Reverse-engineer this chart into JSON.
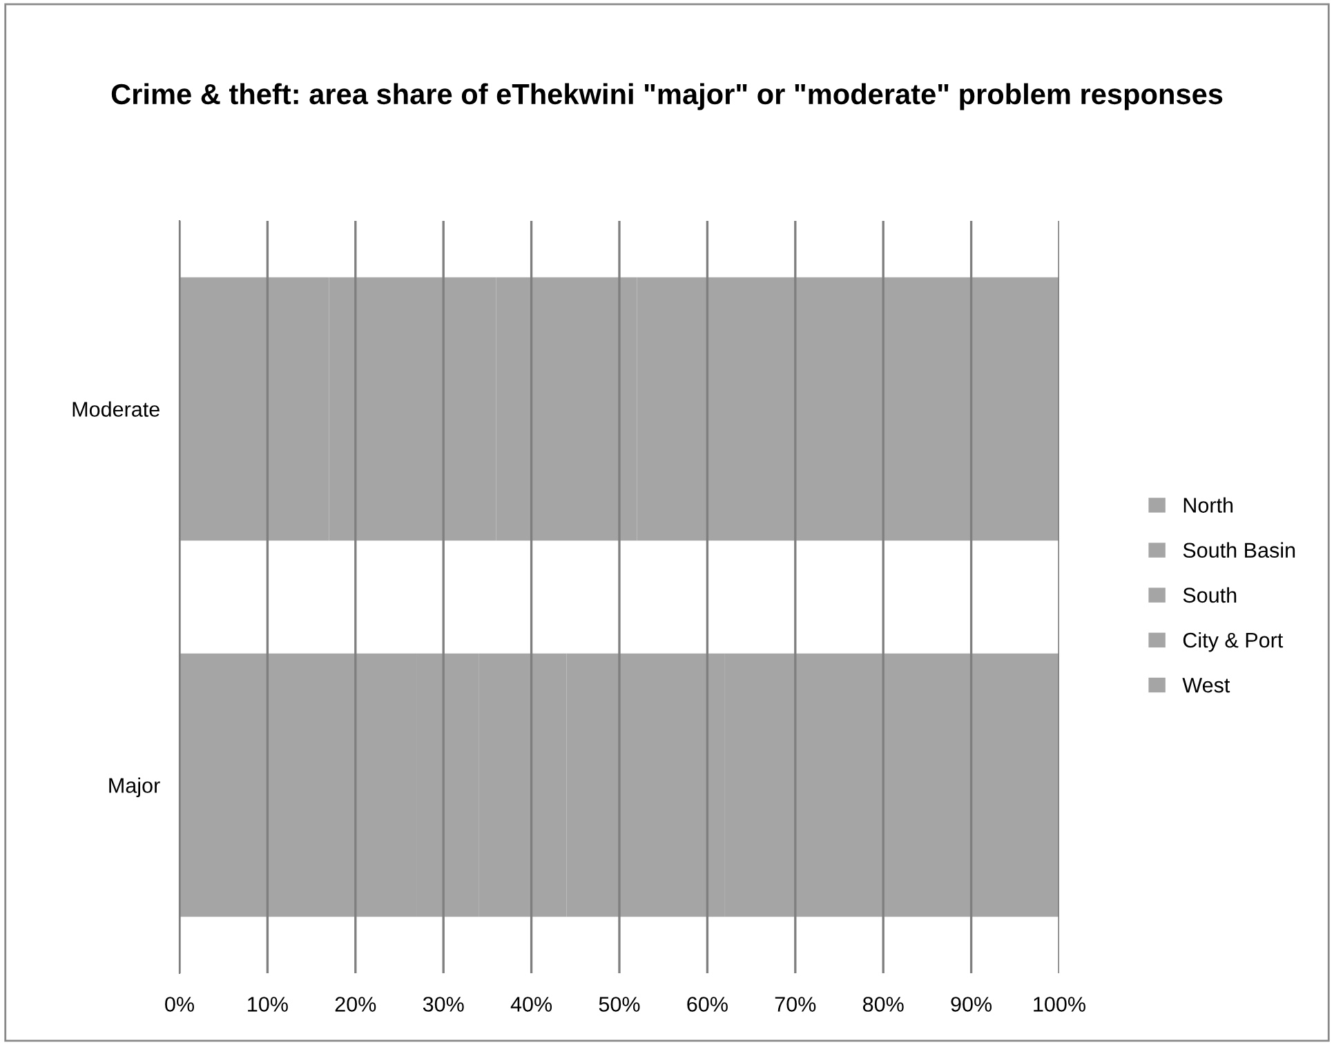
{
  "chart_data": {
    "type": "bar",
    "orientation": "horizontal",
    "stacked": true,
    "title": "Crime & theft: area share of eThekwini \"major\" or \"moderate\" problem responses",
    "categories": [
      "Moderate",
      "Major"
    ],
    "series": [
      {
        "name": "West",
        "color": "#a5a5a5",
        "values": [
          17,
          27
        ]
      },
      {
        "name": "City & Port",
        "color": "#a5a5a5",
        "values": [
          19,
          7
        ]
      },
      {
        "name": "South",
        "color": "#a5a5a5",
        "values": [
          16,
          10
        ]
      },
      {
        "name": "South Basin",
        "color": "#a5a5a5",
        "values": [
          18,
          18
        ]
      },
      {
        "name": "North",
        "color": "#a5a5a5",
        "values": [
          30,
          38
        ]
      }
    ],
    "xlim": [
      0,
      100
    ],
    "xticks": [
      {
        "value": 0,
        "label": "0%"
      },
      {
        "value": 10,
        "label": "10%"
      },
      {
        "value": 20,
        "label": "20%"
      },
      {
        "value": 30,
        "label": "30%"
      },
      {
        "value": 40,
        "label": "40%"
      },
      {
        "value": 50,
        "label": "50%"
      },
      {
        "value": 60,
        "label": "60%"
      },
      {
        "value": 70,
        "label": "70%"
      },
      {
        "value": 80,
        "label": "80%"
      },
      {
        "value": 90,
        "label": "90%"
      },
      {
        "value": 100,
        "label": "100%"
      }
    ],
    "grid": "x",
    "legend": "right"
  }
}
